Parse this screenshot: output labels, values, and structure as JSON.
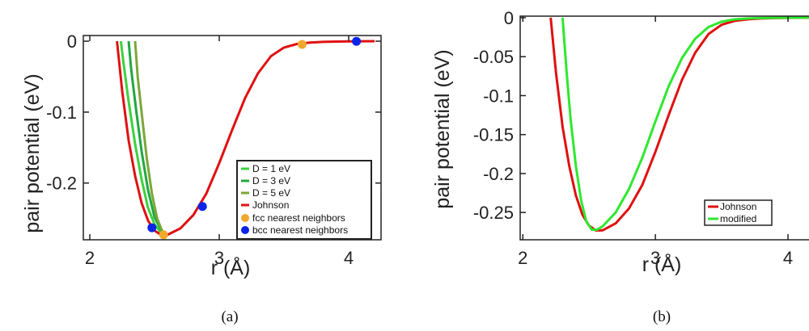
{
  "chart_data": [
    {
      "type": "line",
      "panel_caption": "(a)",
      "xlabel": "r (Å)",
      "ylabel": "pair potential (eV)",
      "xlim": [
        1.95,
        4.25
      ],
      "ylim": [
        -0.28,
        0.008
      ],
      "xticks": [
        2,
        3,
        4
      ],
      "xtick_labels": [
        "2",
        "3",
        "4"
      ],
      "yticks": [
        0,
        -0.1,
        -0.2
      ],
      "ytick_labels": [
        "0",
        "-0.1",
        "-0.2"
      ],
      "legend_position": "bottom-right",
      "series": [
        {
          "name": "D = 1 eV",
          "color": "#3dd13d",
          "x": [
            2.24,
            2.26,
            2.3,
            2.35,
            2.4,
            2.45,
            2.5,
            2.55,
            2.6
          ],
          "y": [
            0.0,
            -0.03,
            -0.085,
            -0.145,
            -0.195,
            -0.235,
            -0.258,
            -0.27,
            -0.273
          ]
        },
        {
          "name": "D = 3 eV",
          "color": "#20a840",
          "x": [
            2.3,
            2.32,
            2.36,
            2.4,
            2.45,
            2.5,
            2.55,
            2.6
          ],
          "y": [
            0.0,
            -0.04,
            -0.1,
            -0.155,
            -0.21,
            -0.248,
            -0.266,
            -0.273
          ]
        },
        {
          "name": "D = 5 eV",
          "color": "#7da63a",
          "x": [
            2.35,
            2.37,
            2.4,
            2.44,
            2.48,
            2.52,
            2.56,
            2.6
          ],
          "y": [
            0.0,
            -0.05,
            -0.1,
            -0.165,
            -0.215,
            -0.25,
            -0.268,
            -0.273
          ]
        },
        {
          "name": "Johnson",
          "color": "#e01010",
          "x": [
            2.21,
            2.25,
            2.3,
            2.35,
            2.4,
            2.45,
            2.5,
            2.55,
            2.6,
            2.7,
            2.8,
            2.9,
            3.0,
            3.1,
            3.2,
            3.3,
            3.4,
            3.5,
            3.6,
            3.7,
            3.8,
            3.9,
            4.0,
            4.1,
            4.2
          ],
          "y": [
            0.0,
            -0.07,
            -0.14,
            -0.19,
            -0.228,
            -0.253,
            -0.267,
            -0.273,
            -0.273,
            -0.264,
            -0.245,
            -0.215,
            -0.172,
            -0.125,
            -0.08,
            -0.045,
            -0.021,
            -0.009,
            -0.004,
            -0.002,
            -0.001,
            -0.0005,
            -0.0002,
            -0.0001,
            0.0
          ]
        },
        {
          "name": "fcc nearest neighbors",
          "color": "#f0a830",
          "marker": "dot",
          "x": [
            2.57,
            3.64
          ],
          "y": [
            -0.273,
            -0.0045
          ]
        },
        {
          "name": "bcc nearest neighbors",
          "color": "#0b24e8",
          "marker": "dot",
          "x": [
            2.48,
            2.87,
            4.06
          ],
          "y": [
            -0.263,
            -0.233,
            -0.0003
          ]
        }
      ]
    },
    {
      "type": "line",
      "panel_caption": "(b)",
      "xlabel": "r (Å)",
      "ylabel": "pair potential (eV)",
      "xlim": [
        1.98,
        4.25
      ],
      "ylim": [
        -0.285,
        0.002
      ],
      "xticks": [
        2,
        3,
        4
      ],
      "xtick_labels": [
        "2",
        "3",
        "4"
      ],
      "yticks": [
        0,
        -0.05,
        -0.1,
        -0.15,
        -0.2,
        -0.25
      ],
      "ytick_labels": [
        "0",
        "-0.05",
        "-0.1",
        "-0.15",
        "-0.2",
        "-0.25"
      ],
      "legend_position": "bottom-right",
      "series": [
        {
          "name": "Johnson",
          "color": "#e01010",
          "x": [
            2.21,
            2.25,
            2.3,
            2.35,
            2.4,
            2.45,
            2.5,
            2.55,
            2.6,
            2.7,
            2.8,
            2.9,
            3.0,
            3.1,
            3.2,
            3.3,
            3.4,
            3.5,
            3.6,
            3.7,
            3.8,
            3.9,
            4.0,
            4.1,
            4.25
          ],
          "y": [
            0.0,
            -0.07,
            -0.14,
            -0.19,
            -0.228,
            -0.253,
            -0.267,
            -0.273,
            -0.273,
            -0.264,
            -0.245,
            -0.215,
            -0.172,
            -0.125,
            -0.08,
            -0.045,
            -0.021,
            -0.009,
            -0.004,
            -0.002,
            -0.001,
            -0.0005,
            -0.0002,
            -0.0001,
            0.0
          ]
        },
        {
          "name": "modified",
          "color": "#2ee82e",
          "x": [
            2.3,
            2.33,
            2.36,
            2.4,
            2.44,
            2.48,
            2.52,
            2.56,
            2.6,
            2.7,
            2.8,
            2.9,
            3.0,
            3.1,
            3.2,
            3.3,
            3.4,
            3.5,
            3.6,
            3.7,
            3.8,
            3.9,
            4.0,
            4.25
          ],
          "y": [
            0.0,
            -0.07,
            -0.13,
            -0.19,
            -0.235,
            -0.262,
            -0.272,
            -0.272,
            -0.268,
            -0.25,
            -0.22,
            -0.18,
            -0.133,
            -0.088,
            -0.052,
            -0.027,
            -0.012,
            -0.005,
            -0.002,
            -0.001,
            -0.0005,
            -0.0002,
            -0.0001,
            0.0
          ]
        }
      ]
    }
  ]
}
